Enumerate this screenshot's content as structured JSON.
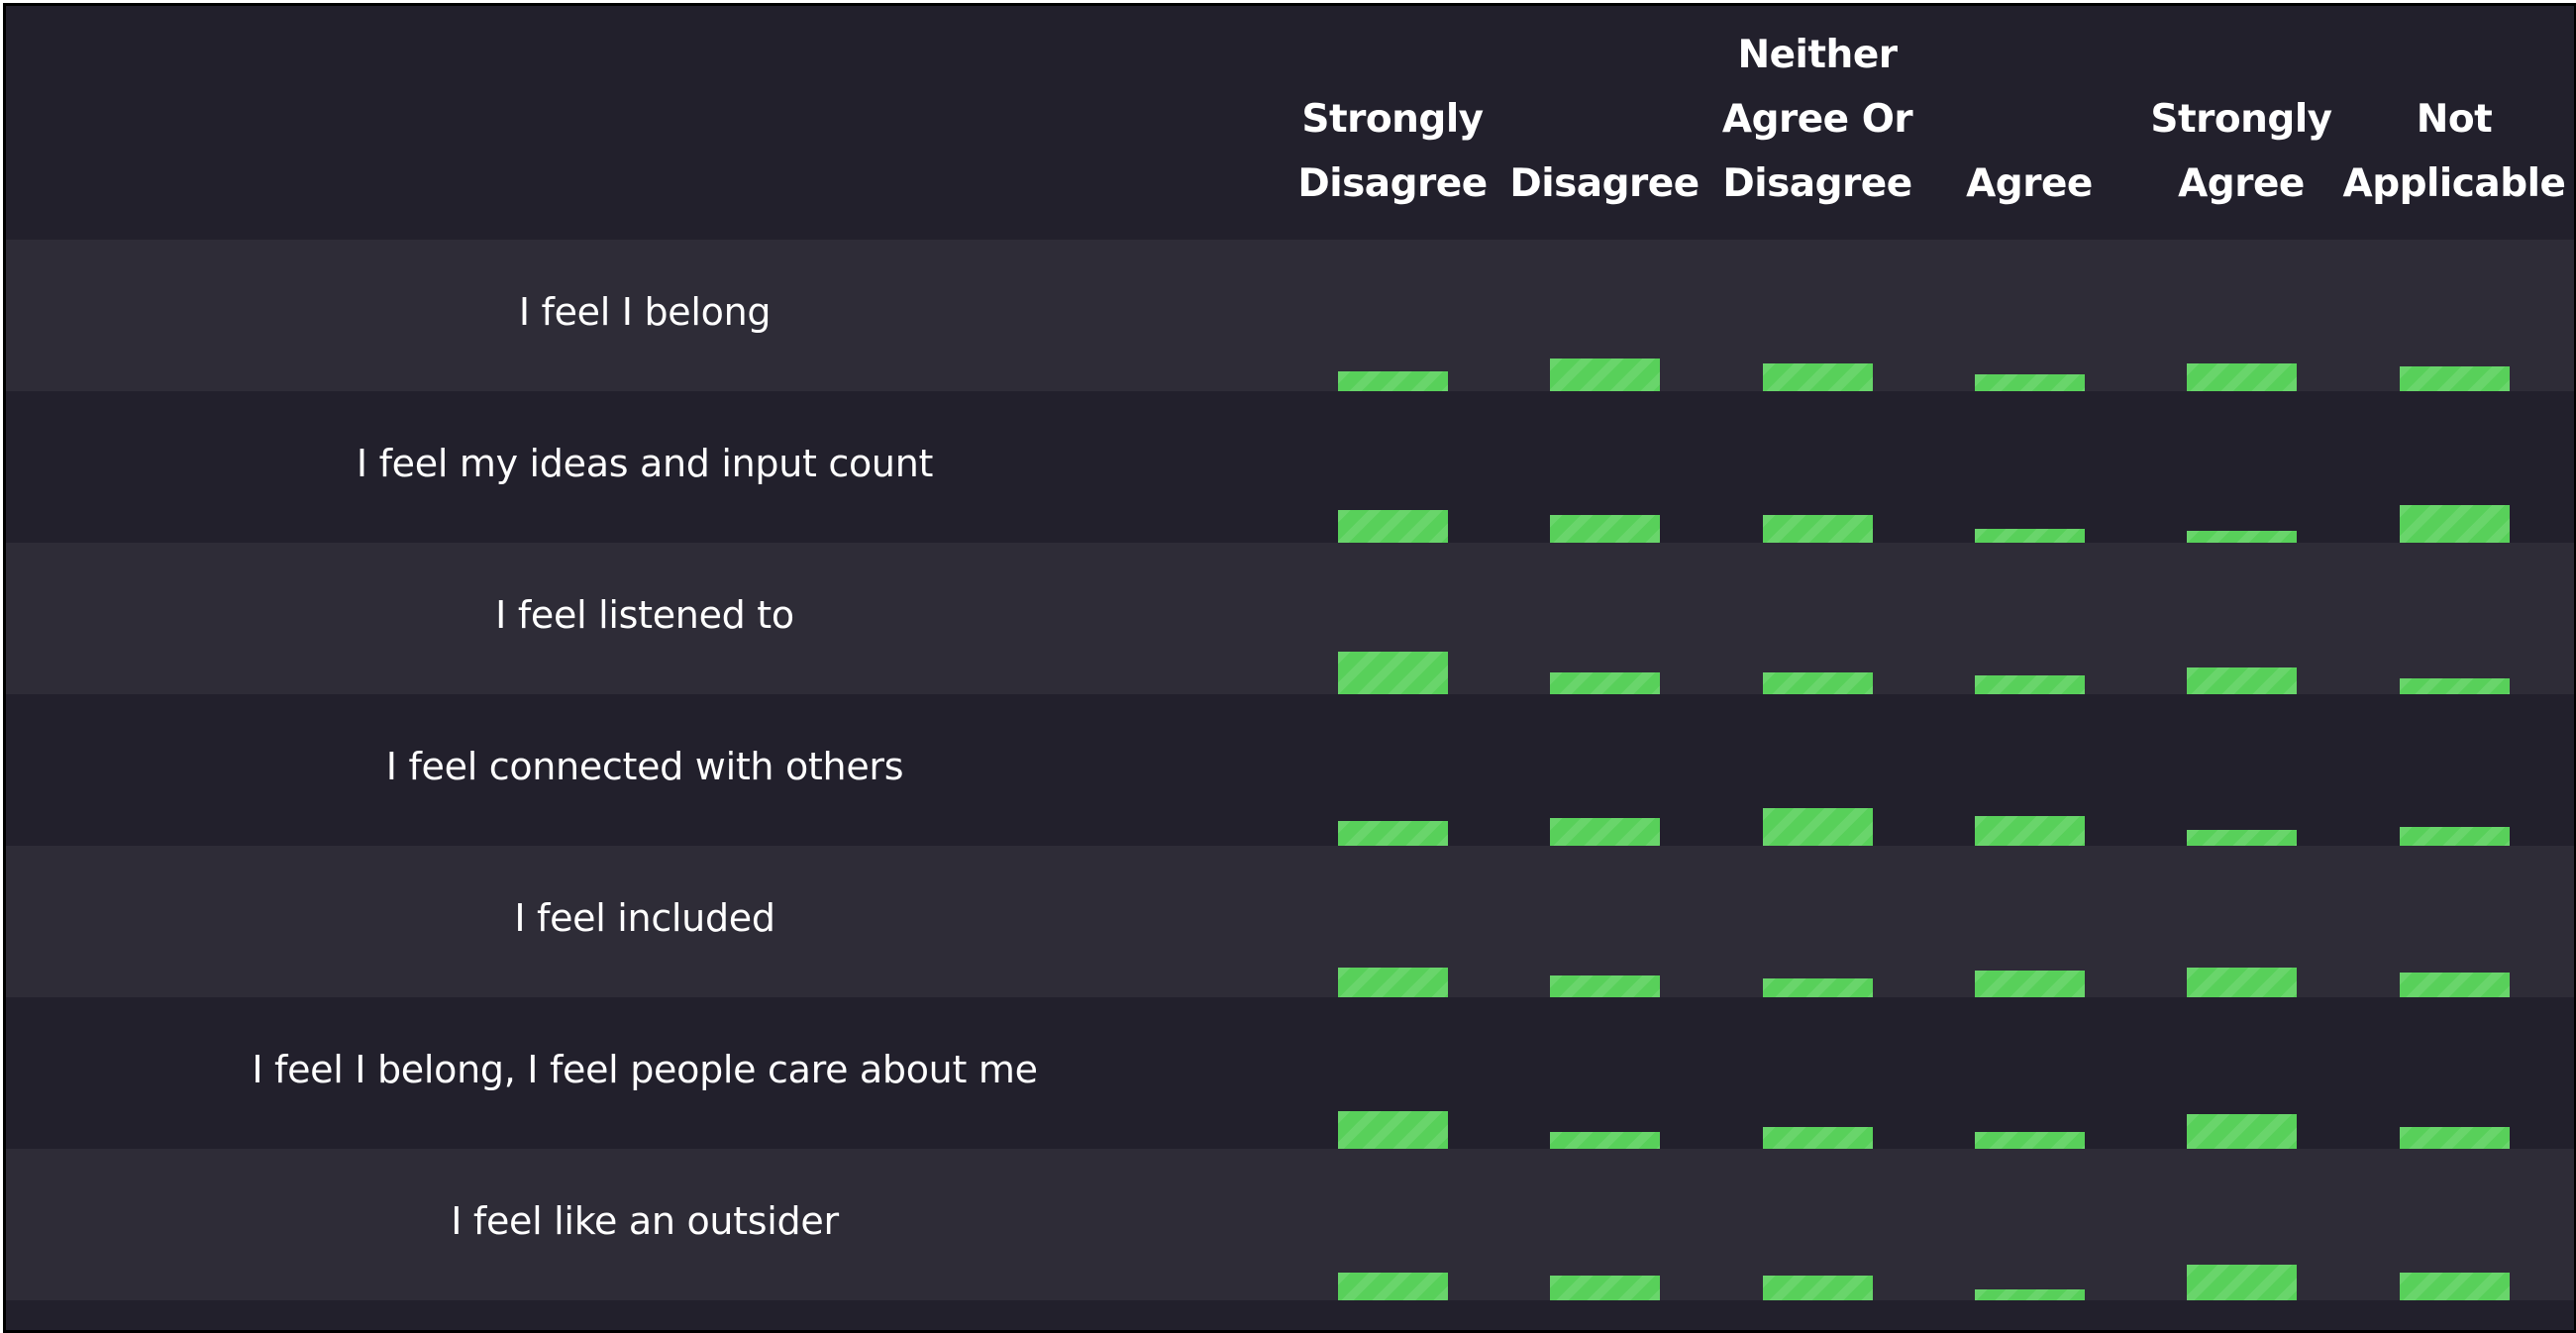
{
  "chart_data": {
    "type": "bar",
    "layout": "grid of small bars (row per statement, column per response option)",
    "columns": [
      {
        "key": "strongly_disagree",
        "lines": [
          "Strongly",
          "Disagree"
        ]
      },
      {
        "key": "disagree",
        "lines": [
          "Disagree"
        ]
      },
      {
        "key": "neither",
        "lines": [
          "Neither",
          "Agree Or",
          "Disagree"
        ]
      },
      {
        "key": "agree",
        "lines": [
          "Agree"
        ]
      },
      {
        "key": "strongly_agree",
        "lines": [
          "Strongly",
          "Agree"
        ]
      },
      {
        "key": "not_applicable",
        "lines": [
          "Not",
          "Applicable"
        ]
      }
    ],
    "rows": [
      {
        "label": "I feel I belong",
        "values": [
          20,
          33,
          28,
          17,
          28,
          25
        ]
      },
      {
        "label": "I feel my ideas and input count",
        "values": [
          33,
          28,
          28,
          14,
          12,
          38
        ]
      },
      {
        "label": "I feel listened to",
        "values": [
          43,
          22,
          22,
          19,
          27,
          16
        ]
      },
      {
        "label": "I feel connected with others",
        "values": [
          25,
          28,
          38,
          30,
          16,
          19
        ]
      },
      {
        "label": "I feel included",
        "values": [
          30,
          22,
          19,
          27,
          30,
          25
        ]
      },
      {
        "label": "I feel I belong, I feel people care about me",
        "values": [
          38,
          17,
          22,
          17,
          35,
          22
        ]
      },
      {
        "label": "I feel like an outsider",
        "values": [
          28,
          25,
          25,
          11,
          36,
          28
        ]
      }
    ],
    "value_scale_max": 50,
    "bar_color": "#58d05a",
    "background_colors": {
      "dark": "#22202c",
      "light": "#2e2c37"
    },
    "grid": false,
    "legend": "none"
  }
}
